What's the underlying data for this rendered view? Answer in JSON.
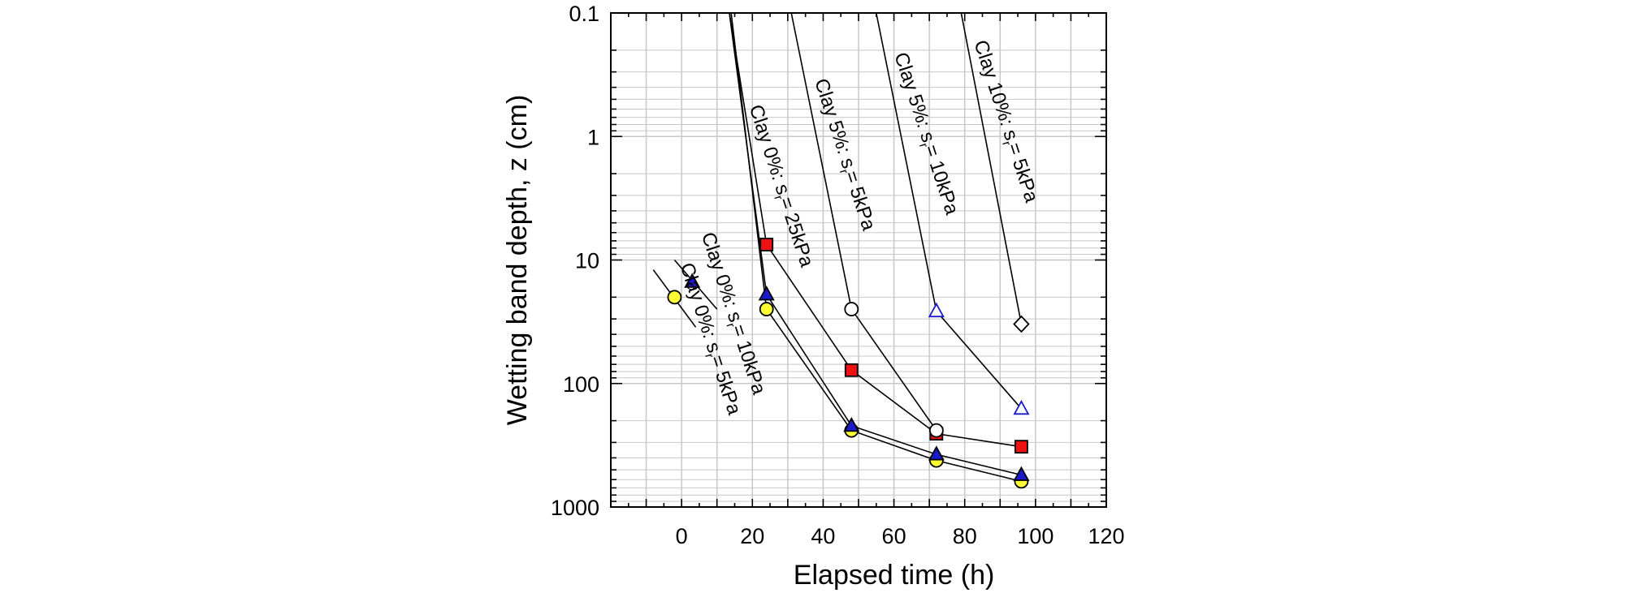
{
  "chart_data": {
    "type": "line",
    "title": "",
    "xlabel": "Elapsed time (h)",
    "ylabel": "Wetting band depth, z (cm)",
    "xlim": [
      -20,
      120
    ],
    "ylim": [
      0.1,
      1000
    ],
    "y_scale": "log",
    "y_inverted": true,
    "x_ticks": [
      0,
      20,
      40,
      60,
      80,
      100,
      120
    ],
    "x_tick_labels": [
      "0",
      "20",
      "40",
      "60",
      "80",
      "100",
      "120"
    ],
    "y_ticks": [
      0.1,
      1,
      10,
      100,
      1000
    ],
    "y_tick_labels": [
      "0.1",
      "1",
      "10",
      "100",
      "1000"
    ],
    "grid": true,
    "series": [
      {
        "name": "Clay 0%: sr= 5kPa",
        "marker": "circle",
        "fill": "#ffff33",
        "stroke": "#000000",
        "x": [
          24,
          48,
          72,
          96
        ],
        "y": [
          25,
          240,
          420,
          620
        ],
        "extra_points": [
          {
            "x": -2,
            "y": 20
          }
        ],
        "extra_line": {
          "x": [
            -8,
            4
          ],
          "y": [
            12,
            35
          ]
        },
        "line_start": {
          "x": 14,
          "y": 0.1
        }
      },
      {
        "name": "Clay 0%: sr= 10kPa",
        "marker": "triangle",
        "fill": "#1a1acc",
        "stroke": "#000000",
        "x": [
          24,
          48,
          72,
          96
        ],
        "y": [
          19,
          220,
          375,
          550
        ],
        "extra_points": [
          {
            "x": 3,
            "y": 15
          }
        ],
        "extra_line": {
          "x": [
            -2,
            10
          ],
          "y": [
            10,
            25
          ]
        },
        "line_start": {
          "x": 13.5,
          "y": 0.1
        }
      },
      {
        "name": "Clay 0%: sr= 25kPa",
        "marker": "square",
        "fill": "#ee1111",
        "stroke": "#000000",
        "x": [
          24,
          48,
          72,
          96
        ],
        "y": [
          7.5,
          78,
          255,
          325
        ],
        "line_start": {
          "x": 13.5,
          "y": 0.1
        }
      },
      {
        "name": "Clay 5%: sr= 5kPa",
        "marker": "circle",
        "fill": "#ffffff",
        "stroke": "#000000",
        "x": [
          48,
          72
        ],
        "y": [
          25,
          240
        ],
        "line_start": {
          "x": 31,
          "y": 0.1
        }
      },
      {
        "name": "Clay 5%: sr= 10kPa",
        "marker": "triangle",
        "fill": "#ffffff",
        "stroke": "#1a1acc",
        "x": [
          72,
          96
        ],
        "y": [
          26,
          160
        ],
        "line_start": {
          "x": 55,
          "y": 0.1
        }
      },
      {
        "name": "Clay 10%: sr= 5kPa",
        "marker": "diamond",
        "fill": "#ffffff",
        "stroke": "#000000",
        "x": [
          96
        ],
        "y": [
          33
        ],
        "line_start": {
          "x": 79,
          "y": 0.1
        }
      }
    ],
    "annotations": [
      {
        "id": "c0-25",
        "prefix": "Clay 0%: s",
        "sub": "r",
        "suffix": "= 25kPa",
        "x": 26.5,
        "y": 2.6
      },
      {
        "id": "c5-5",
        "prefix": "Clay 5%: s",
        "sub": "r",
        "suffix": "= 5kPa",
        "x": 44.5,
        "y": 1.45
      },
      {
        "id": "c5-10",
        "prefix": "Clay 5%: s",
        "sub": "r",
        "suffix": "= 10kPa",
        "x": 67.5,
        "y": 0.98
      },
      {
        "id": "c10-5",
        "prefix": "Clay 10%: s",
        "sub": "r",
        "suffix": "= 5kPa",
        "x": 90,
        "y": 0.78
      },
      {
        "id": "c0-10",
        "prefix": "Clay 0%: s",
        "sub": "r",
        "suffix": "= 10kPa",
        "x": 13,
        "y": 28
      },
      {
        "id": "c0-5",
        "prefix": "Clay 0%: s",
        "sub": "r",
        "suffix": "= 5kPa",
        "x": 6.5,
        "y": 45
      }
    ]
  }
}
